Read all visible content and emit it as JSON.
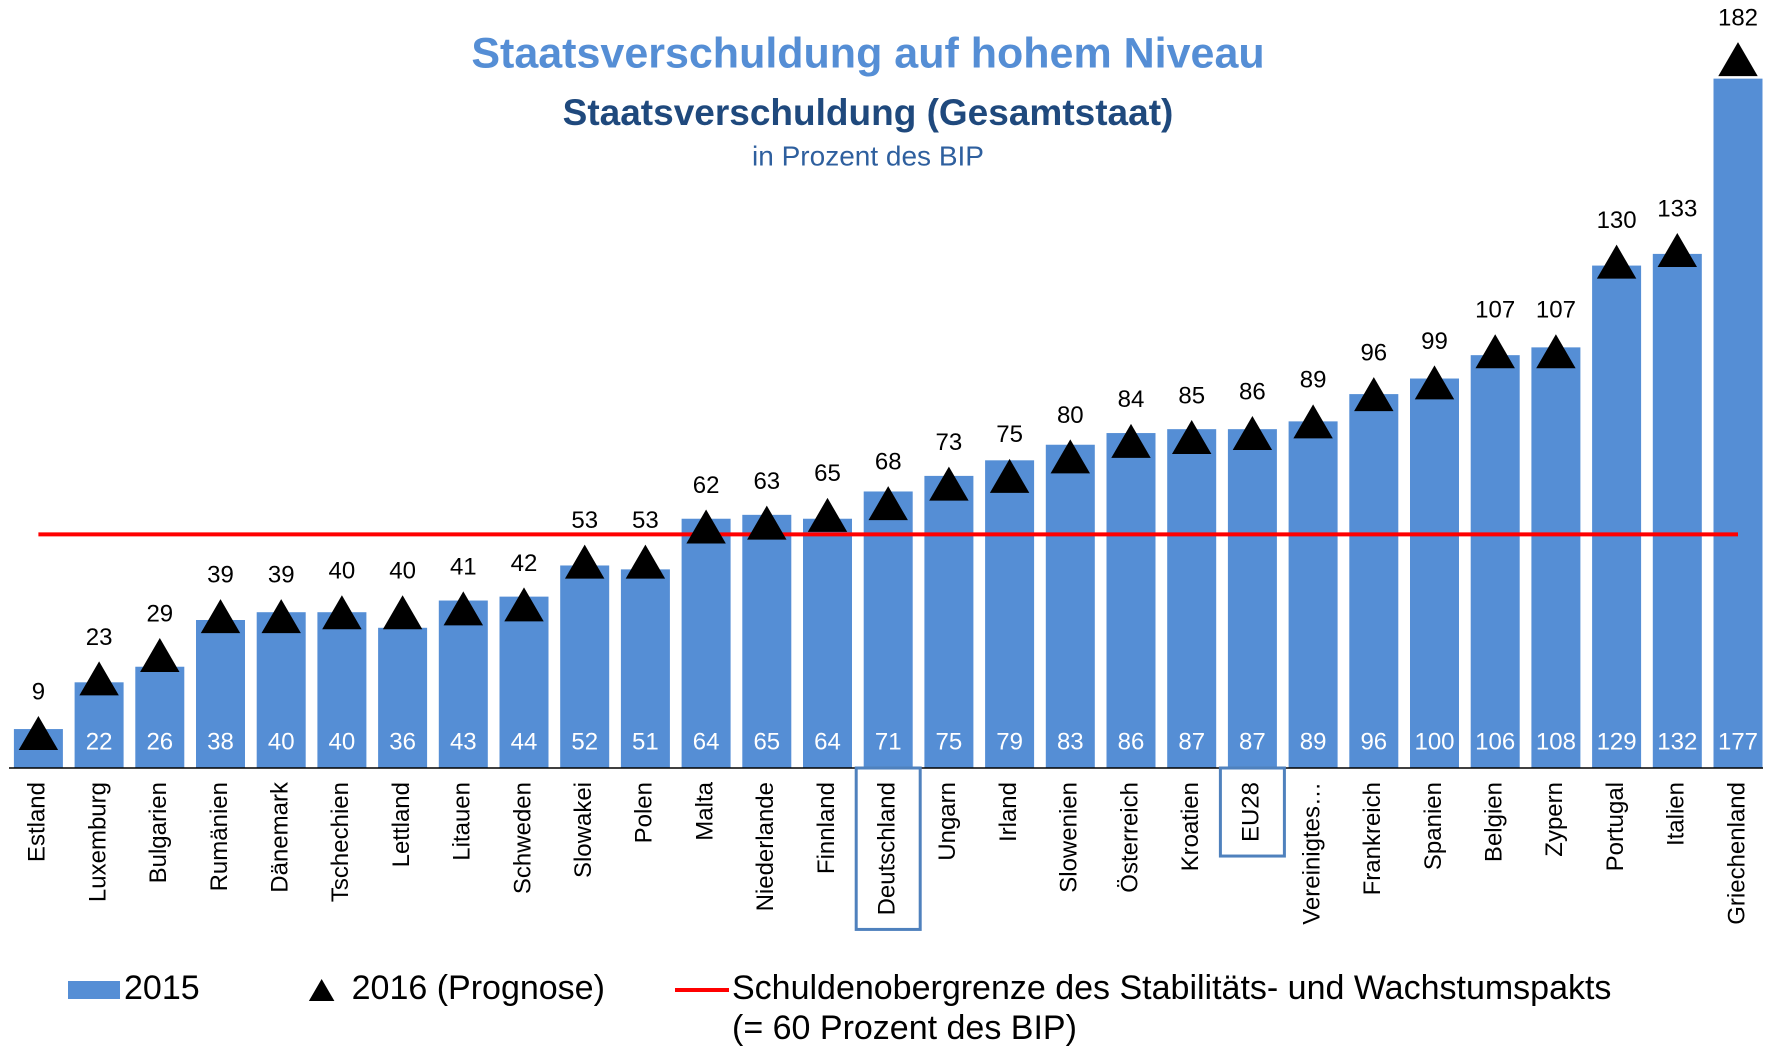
{
  "chart_data": {
    "type": "bar",
    "title": "Staatsverschuldung auf hohem Niveau",
    "subtitle": "Staatsverschuldung (Gesamtstaat)",
    "unit_label": "in Prozent des BIP",
    "categories": [
      "Estland",
      "Luxemburg",
      "Bulgarien",
      "Rumänien",
      "Dänemark",
      "Tschechien",
      "Lettland",
      "Litauen",
      "Schweden",
      "Slowakei",
      "Polen",
      "Malta",
      "Niederlande",
      "Finnland",
      "Deutschland",
      "Ungarn",
      "Irland",
      "Slowenien",
      "Österreich",
      "Kroatien",
      "EU28",
      "Vereinigtes…",
      "Frankreich",
      "Spanien",
      "Belgien",
      "Zypern",
      "Portugal",
      "Italien",
      "Griechenland"
    ],
    "highlighted": [
      "Deutschland",
      "EU28"
    ],
    "series": [
      {
        "name": "2015",
        "type": "bar",
        "color": "#558ed5",
        "values": [
          10,
          22,
          26,
          38,
          40,
          40,
          36,
          43,
          44,
          52,
          51,
          64,
          65,
          64,
          71,
          75,
          79,
          83,
          86,
          87,
          87,
          89,
          96,
          100,
          106,
          108,
          129,
          132,
          177
        ]
      },
      {
        "name": "2016 (Prognose)",
        "type": "marker",
        "color": "#000000",
        "values": [
          9,
          23,
          29,
          39,
          39,
          40,
          40,
          41,
          42,
          53,
          53,
          62,
          63,
          65,
          68,
          73,
          75,
          80,
          84,
          85,
          86,
          89,
          96,
          99,
          107,
          107,
          130,
          133,
          182
        ]
      }
    ],
    "reference_line": {
      "value": 60,
      "color": "#ff0000",
      "label": [
        "Schuldenobergrenze des Stabilitäts- und Wachstumspakts",
        "(= 60 Prozent des BIP)"
      ]
    },
    "ylim": [
      0,
      190
    ]
  }
}
